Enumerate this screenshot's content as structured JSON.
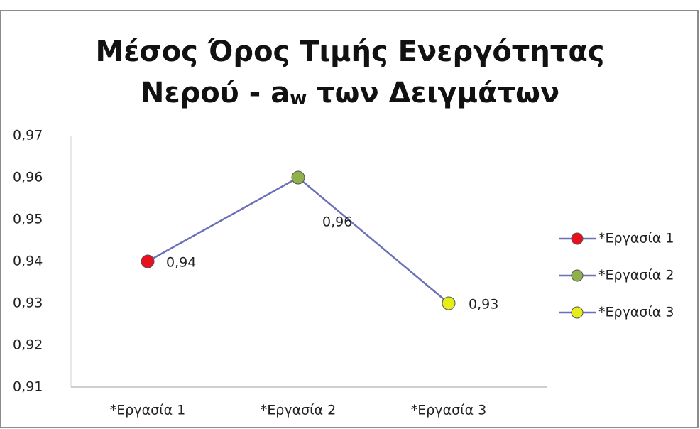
{
  "chart_data": {
    "type": "line",
    "title": {
      "line1": "Μέσος Όρος Τιμής Ενεργότητας",
      "line2_start": "Νερού - a",
      "subscript": "w",
      "line2_end": " των Δειγμάτων"
    },
    "categories": [
      "*Εργασία 1",
      "*Εργασία 2",
      "*Εργασία 3"
    ],
    "series": [
      {
        "color": "#6b70b8",
        "values": [
          0.94,
          0.96,
          0.93
        ],
        "value_labels": [
          "0,94",
          "0,96",
          "0,93"
        ]
      }
    ],
    "point_colors": [
      "#e8101c",
      "#8fb04a",
      "#e6ee1a"
    ],
    "ylim": [
      0.91,
      0.97
    ],
    "yticks": [
      {
        "value": 0.91,
        "label": "0,91"
      },
      {
        "value": 0.92,
        "label": "0,92"
      },
      {
        "value": 0.93,
        "label": "0,93"
      },
      {
        "value": 0.94,
        "label": "0,94"
      },
      {
        "value": 0.95,
        "label": "0,95"
      },
      {
        "value": 0.96,
        "label": "0,96"
      },
      {
        "value": 0.97,
        "label": "0,97"
      }
    ],
    "legend": "right"
  }
}
